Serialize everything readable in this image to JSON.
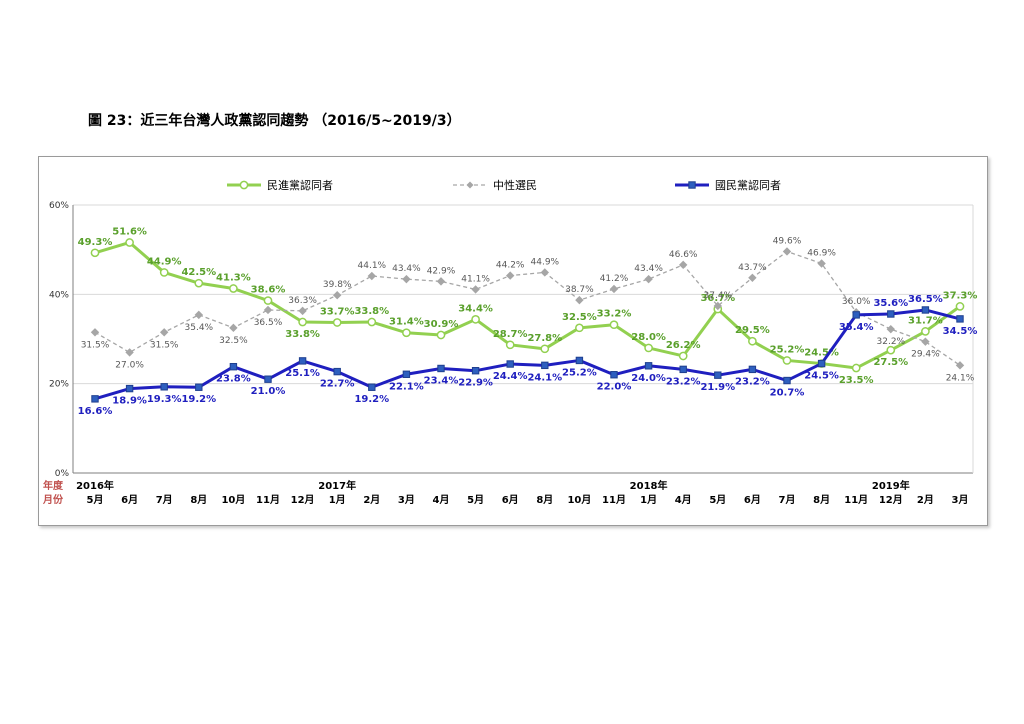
{
  "page": {
    "title": "圖 23：近三年台灣人政黨認同趨勢 （2016/5~2019/3）"
  },
  "chart_data": {
    "type": "line",
    "title": "",
    "ylabel": "",
    "ylim": [
      0,
      60
    ],
    "yticks": [
      "0%",
      "20%",
      "40%",
      "60%"
    ],
    "grid": true,
    "legend_position": "top",
    "x_header_labels": [
      "年度",
      "月份"
    ],
    "years": [
      "2016年",
      "2017年",
      "2018年",
      "2019年"
    ],
    "year_index": [
      0,
      7,
      16,
      23
    ],
    "months": [
      "5月",
      "6月",
      "7月",
      "8月",
      "10月",
      "11月",
      "12月",
      "1月",
      "2月",
      "3月",
      "4月",
      "5月",
      "6月",
      "8月",
      "10月",
      "11月",
      "1月",
      "4月",
      "5月",
      "6月",
      "7月",
      "8月",
      "11月",
      "12月",
      "2月",
      "3月"
    ],
    "series": [
      {
        "name": "民進黨認同者",
        "color": "#92d050",
        "marker": "circle",
        "values": [
          49.3,
          51.6,
          44.9,
          42.5,
          41.3,
          38.6,
          33.8,
          33.7,
          33.8,
          31.4,
          30.9,
          34.4,
          28.7,
          27.8,
          32.5,
          33.2,
          28.0,
          26.2,
          36.7,
          29.5,
          25.2,
          24.5,
          23.5,
          27.5,
          31.7,
          37.3
        ],
        "labels": [
          "49.3%",
          "51.6%",
          "44.9%",
          "42.5%",
          "41.3%",
          "38.6%",
          "33.8%",
          "33.7%",
          "33.8%",
          "31.4%",
          "30.9%",
          "34.4%",
          "28.7%",
          "27.8%",
          "32.5%",
          "33.2%",
          "28.0%",
          "26.2%",
          "36.7%",
          "29.5%",
          "25.2%",
          "24.5%",
          "23.5%",
          "27.5%",
          "31.7%",
          "37.3%"
        ]
      },
      {
        "name": "中性選民",
        "color": "#a6a6a6",
        "marker": "diamond",
        "values": [
          31.5,
          27.0,
          31.5,
          35.4,
          32.5,
          36.5,
          36.3,
          39.8,
          44.1,
          43.4,
          42.9,
          41.1,
          44.2,
          44.9,
          38.7,
          41.2,
          43.4,
          46.6,
          37.4,
          43.7,
          49.6,
          46.9,
          36.0,
          32.2,
          29.4,
          24.1
        ],
        "labels": [
          "31.5%",
          "27.0%",
          "31.5%",
          "35.4%",
          "32.5%",
          "36.5%",
          "36.3%",
          "39.8%",
          "44.1%",
          "43.4%",
          "42.9%",
          "41.1%",
          "44.2%",
          "44.9%",
          "38.7%",
          "41.2%",
          "43.4%",
          "46.6%",
          "37.4%",
          "43.7%",
          "49.6%",
          "46.9%",
          "36.0%",
          "32.2%",
          "29.4%",
          "24.1%"
        ]
      },
      {
        "name": "國民黨認同者",
        "color": "#1f1fbf",
        "marker": "square",
        "values": [
          16.6,
          18.9,
          19.3,
          19.2,
          23.8,
          21.0,
          25.1,
          22.7,
          19.2,
          22.1,
          23.4,
          22.9,
          24.4,
          24.1,
          25.2,
          22.0,
          24.0,
          23.2,
          21.9,
          23.2,
          20.7,
          24.5,
          35.4,
          35.6,
          36.5,
          34.5
        ],
        "labels": [
          "16.6%",
          "18.9%",
          "19.3%",
          "19.2%",
          "23.8%",
          "21.0%",
          "25.1%",
          "22.7%",
          "19.2%",
          "22.1%",
          "23.4%",
          "22.9%",
          "24.4%",
          "24.1%",
          "25.2%",
          "22.0%",
          "24.0%",
          "23.2%",
          "21.9%",
          "23.2%",
          "20.7%",
          "24.5%",
          "35.4%",
          "35.6%",
          "36.5%",
          "34.5%"
        ]
      }
    ]
  }
}
